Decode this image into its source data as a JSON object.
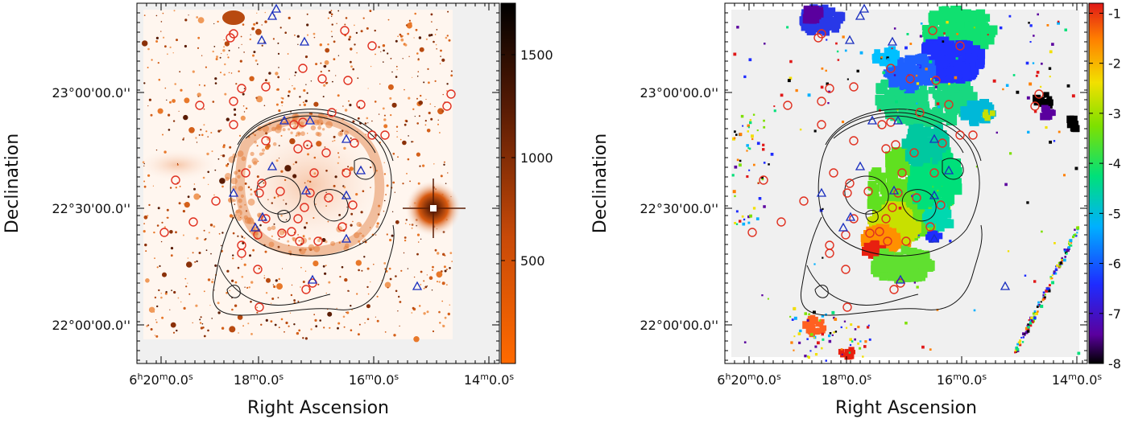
{
  "chart_data": [
    {
      "type": "heatmap",
      "panel": "left",
      "xlabel": "Right Ascension",
      "ylabel": "Declination",
      "xticks": [
        "6h20m0.0s",
        "18m0.0s",
        "16m0.0s",
        "14m0.0s"
      ],
      "xtick_parts": [
        {
          "h": "6",
          "m": "20",
          "s": "0.0"
        },
        {
          "h": "",
          "m": "18",
          "s": "0.0"
        },
        {
          "h": "",
          "m": "16",
          "s": "0.0"
        },
        {
          "h": "",
          "m": "14",
          "s": "0.0"
        }
      ],
      "yticks": [
        "23°00'00.0''",
        "22°30'00.0''",
        "22°00'00.0''"
      ],
      "colorbar": {
        "ticks": [
          "1500",
          "1000",
          "500"
        ],
        "tick_values": [
          1500,
          1000,
          500
        ],
        "range": [
          0,
          1750
        ],
        "colormap": "white-orange-black",
        "colors": [
          "#ff6a00",
          "#c84a08",
          "#5a1c04",
          "#000000"
        ]
      }
    },
    {
      "type": "heatmap",
      "panel": "right",
      "xlabel": "Right Ascension",
      "ylabel": "Declination",
      "xticks": [
        "6h20m0.0s",
        "18m0.0s",
        "16m0.0s",
        "14m0.0s"
      ],
      "xtick_parts": [
        {
          "h": "6",
          "m": "20",
          "s": "0.0"
        },
        {
          "h": "",
          "m": "18",
          "s": "0.0"
        },
        {
          "h": "",
          "m": "16",
          "s": "0.0"
        },
        {
          "h": "",
          "m": "14",
          "s": "0.0"
        }
      ],
      "yticks": [
        "23°00'00.0''",
        "22°30'00.0''",
        "22°00'00.0''"
      ],
      "colorbar": {
        "ticks": [
          "-1",
          "-2",
          "-3",
          "-4",
          "-5",
          "-6",
          "-7",
          "-8"
        ],
        "tick_values": [
          -1,
          -2,
          -3,
          -4,
          -5,
          -6,
          -7,
          -8
        ],
        "range": [
          -8,
          -0.8
        ],
        "colormap": "rainbow",
        "colors": [
          "#000000",
          "#5a009e",
          "#1e2cff",
          "#00b0ff",
          "#00e07a",
          "#7ee000",
          "#f2e000",
          "#ff8000",
          "#e01818"
        ]
      }
    }
  ]
}
